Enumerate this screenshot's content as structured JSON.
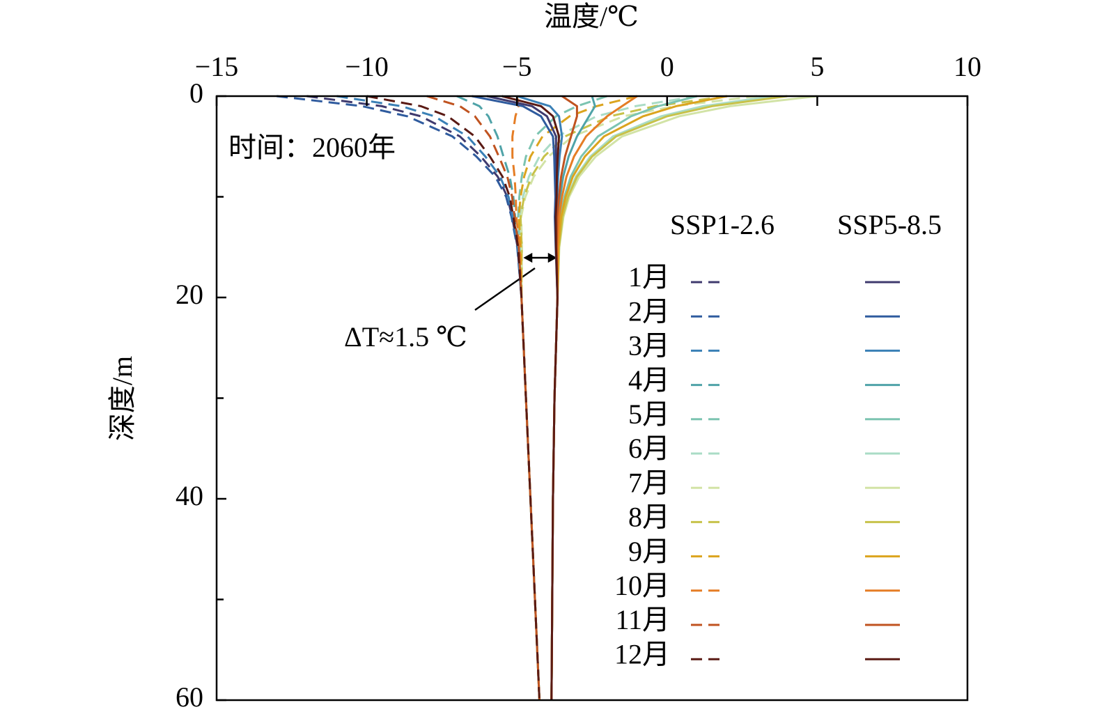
{
  "chart_data": {
    "type": "line",
    "xlabel": "温度/℃",
    "ylabel": "深度/m",
    "annotation": "时间：2060年",
    "delta_label": "ΔT≈1.5 ℃",
    "xlim": [
      -15,
      10
    ],
    "xticks": [
      {
        "value": -15,
        "label": "−15"
      },
      {
        "value": -10,
        "label": "−10"
      },
      {
        "value": -5,
        "label": "−5"
      },
      0,
      5,
      10
    ],
    "ylim": [
      0,
      60
    ],
    "y_inverted": true,
    "yticks": [
      0,
      20,
      40,
      60
    ],
    "yminor": [
      10,
      30,
      50
    ],
    "depth": [
      0,
      1,
      2,
      4,
      6,
      8,
      10,
      12,
      15,
      20,
      30,
      40,
      60
    ],
    "months": [
      {
        "name": "1月",
        "color": "#3f3a6e"
      },
      {
        "name": "2月",
        "color": "#2f5b9e"
      },
      {
        "name": "3月",
        "color": "#3a80b6"
      },
      {
        "name": "4月",
        "color": "#4fa3a8"
      },
      {
        "name": "5月",
        "color": "#7cc4b1"
      },
      {
        "name": "6月",
        "color": "#aadcc6"
      },
      {
        "name": "7月",
        "color": "#d2e3a6"
      },
      {
        "name": "8月",
        "color": "#c7c24a"
      },
      {
        "name": "9月",
        "color": "#dba41e"
      },
      {
        "name": "10月",
        "color": "#e57d25"
      },
      {
        "name": "11月",
        "color": "#c05320"
      },
      {
        "name": "12月",
        "color": "#5a1a14"
      }
    ],
    "scenarios": [
      {
        "name": "SSP1-2.6",
        "dashed": true,
        "values": [
          [
            -12,
            -9.5,
            -8.2,
            -6.9,
            -6.2,
            -5.64,
            -5.32,
            -5.16,
            -4.98,
            -4.85,
            -4.7,
            -4.55,
            -4.25
          ],
          [
            -13,
            -10.15,
            -8.65,
            -7.15,
            -6.35,
            -5.72,
            -5.36,
            -5.18,
            -4.99,
            -4.85,
            -4.7,
            -4.55,
            -4.25
          ],
          [
            -11,
            -8.85,
            -7.75,
            -6.65,
            -6.05,
            -5.56,
            -5.28,
            -5.14,
            -4.97,
            -4.85,
            -4.7,
            -4.55,
            -4.25
          ],
          [
            -7,
            -6.25,
            -5.95,
            -5.65,
            -5.45,
            -5.24,
            -5.12,
            -5.06,
            -4.93,
            -4.85,
            -4.7,
            -4.55,
            -4.25
          ],
          [
            -2,
            -3,
            -3.7,
            -4.4,
            -4.7,
            -4.84,
            -4.92,
            -4.96,
            -4.88,
            -4.85,
            -4.7,
            -4.55,
            -4.25
          ],
          [
            1,
            -1.05,
            -2.35,
            -3.65,
            -4.25,
            -4.6,
            -4.8,
            -4.9,
            -4.85,
            -4.85,
            -4.7,
            -4.55,
            -4.25
          ],
          [
            3,
            0.25,
            -1.45,
            -3.15,
            -3.95,
            -4.44,
            -4.72,
            -4.86,
            -4.83,
            -4.85,
            -4.7,
            -4.55,
            -4.25
          ],
          [
            2,
            -0.4,
            -1.9,
            -3.4,
            -4.1,
            -4.52,
            -4.76,
            -4.88,
            -4.84,
            -4.85,
            -4.7,
            -4.55,
            -4.25
          ],
          [
            -1,
            -2.35,
            -3.25,
            -4.15,
            -4.55,
            -4.76,
            -4.88,
            -4.94,
            -4.87,
            -4.85,
            -4.7,
            -4.55,
            -4.25
          ],
          [
            -5,
            -4.95,
            -5.05,
            -5.15,
            -5.15,
            -5.08,
            -5.04,
            -5.02,
            -4.91,
            -4.85,
            -4.7,
            -4.55,
            -4.25
          ],
          [
            -8,
            -6.9,
            -6.4,
            -5.9,
            -5.6,
            -5.32,
            -5.16,
            -5.08,
            -4.94,
            -4.85,
            -4.7,
            -4.55,
            -4.25
          ],
          [
            -10,
            -8.2,
            -7.3,
            -6.4,
            -5.9,
            -5.48,
            -5.24,
            -5.12,
            -4.96,
            -4.85,
            -4.7,
            -4.55,
            -4.25
          ]
        ]
      },
      {
        "name": "SSP5-8.5",
        "dashed": false,
        "values": [
          [
            -6,
            -4.5,
            -4,
            -3.7,
            -3.7,
            -3.7,
            -3.7,
            -3.73,
            -3.7,
            -3.65,
            -3.75,
            -3.8,
            -3.85
          ],
          [
            -6.5,
            -4.8,
            -4.2,
            -3.8,
            -3.76,
            -3.74,
            -3.72,
            -3.74,
            -3.71,
            -3.65,
            -3.75,
            -3.8,
            -3.85
          ],
          [
            -5,
            -3.9,
            -3.6,
            -3.5,
            -3.58,
            -3.63,
            -3.66,
            -3.7,
            -3.69,
            -3.65,
            -3.75,
            -3.8,
            -3.85
          ],
          [
            -2.5,
            -2.4,
            -2.6,
            -3,
            -3.28,
            -3.46,
            -3.56,
            -3.64,
            -3.67,
            -3.65,
            -3.75,
            -3.8,
            -3.85
          ],
          [
            1,
            -0.3,
            -1.2,
            -2.3,
            -2.86,
            -3.21,
            -3.42,
            -3.55,
            -3.63,
            -3.65,
            -3.75,
            -3.8,
            -3.85
          ],
          [
            3.5,
            1.2,
            -0.2,
            -1.8,
            -2.56,
            -3.04,
            -3.32,
            -3.49,
            -3.6,
            -3.65,
            -3.75,
            -3.8,
            -3.85
          ],
          [
            5,
            2.1,
            0.4,
            -1.5,
            -2.38,
            -2.93,
            -3.26,
            -3.45,
            -3.59,
            -3.65,
            -3.75,
            -3.8,
            -3.85
          ],
          [
            4,
            1.5,
            0,
            -1.7,
            -2.5,
            -3,
            -3.3,
            -3.48,
            -3.6,
            -3.65,
            -3.75,
            -3.8,
            -3.85
          ],
          [
            2,
            0.3,
            -0.8,
            -2.1,
            -2.74,
            -3.14,
            -3.38,
            -3.53,
            -3.62,
            -3.65,
            -3.75,
            -3.8,
            -3.85
          ],
          [
            -1,
            -1.5,
            -2,
            -2.7,
            -3.1,
            -3.35,
            -3.5,
            -3.6,
            -3.65,
            -3.65,
            -3.75,
            -3.8,
            -3.85
          ],
          [
            -3.5,
            -3,
            -3,
            -3.2,
            -3.4,
            -3.53,
            -3.6,
            -3.66,
            -3.68,
            -3.65,
            -3.75,
            -3.8,
            -3.85
          ],
          [
            -5.5,
            -4.2,
            -3.8,
            -3.6,
            -3.64,
            -3.67,
            -3.68,
            -3.71,
            -3.7,
            -3.65,
            -3.75,
            -3.8,
            -3.85
          ]
        ]
      }
    ]
  }
}
